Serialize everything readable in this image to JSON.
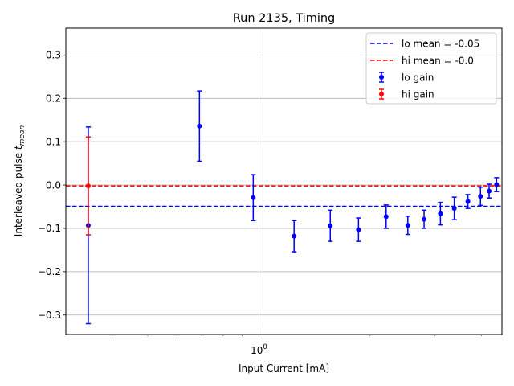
{
  "chart_data": {
    "type": "scatter",
    "title": "Run 2135, Timing",
    "xlabel": "Input Current [mA]",
    "ylabel_main": "Interleaved pulse ",
    "ylabel_sym": "t",
    "ylabel_sub": "mean",
    "xscale": "log",
    "xlim": [
      0.3,
      4.55
    ],
    "ylim": [
      -0.345,
      0.362
    ],
    "grid": true,
    "legend_position": "upper-right",
    "xtick_label_base": "10",
    "xtick_label_exp": "0",
    "yticks": [
      -0.3,
      -0.2,
      -0.1,
      0.0,
      0.1,
      0.2,
      0.3
    ],
    "ytick_labels": [
      "−0.3",
      "−0.2",
      "−0.1",
      "0.0",
      "0.1",
      "0.2",
      "0.3"
    ],
    "series": [
      {
        "name": "lo gain",
        "color": "#0000ff",
        "x": [
          0.345,
          0.69,
          0.965,
          1.245,
          1.56,
          1.86,
          2.21,
          2.53,
          2.8,
          3.1,
          3.38,
          3.68,
          3.98,
          4.2,
          4.4
        ],
        "y": [
          -0.093,
          0.136,
          -0.029,
          -0.118,
          -0.094,
          -0.103,
          -0.073,
          -0.093,
          -0.079,
          -0.066,
          -0.054,
          -0.038,
          -0.026,
          -0.014,
          0.001
        ],
        "yerr": [
          0.227,
          0.081,
          0.053,
          0.036,
          0.036,
          0.027,
          0.027,
          0.021,
          0.021,
          0.026,
          0.026,
          0.016,
          0.021,
          0.016,
          0.016
        ]
      },
      {
        "name": "hi gain",
        "color": "#ff0000",
        "x": [
          0.345
        ],
        "y": [
          -0.002
        ],
        "yerr": [
          0.113
        ]
      }
    ],
    "hlines": [
      {
        "name": "lo mean = -0.05",
        "y": -0.049,
        "color": "#0000ff"
      },
      {
        "name": "hi mean = -0.0",
        "y": -0.002,
        "color": "#ff0000"
      }
    ]
  }
}
